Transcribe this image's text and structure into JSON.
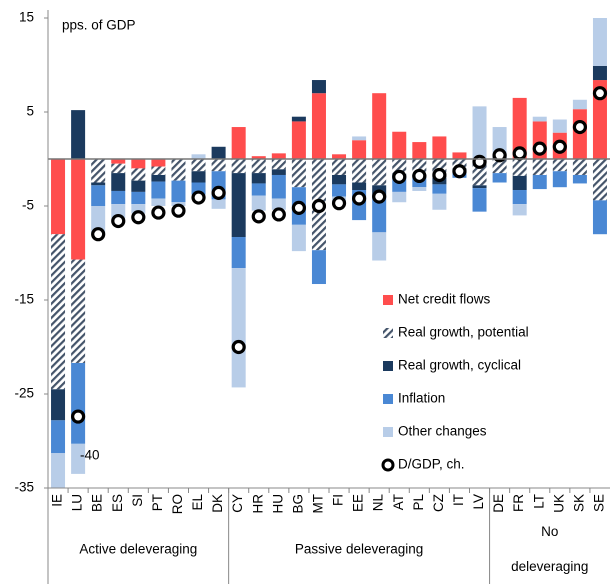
{
  "chart_data": {
    "type": "stacked-bar",
    "y_label": "pps. of GDP",
    "categories": [
      "IE",
      "LU",
      "BE",
      "ES",
      "SI",
      "PT",
      "RO",
      "EL",
      "DK",
      "CY",
      "HR",
      "HU",
      "BG",
      "MT",
      "FI",
      "EE",
      "NL",
      "AT",
      "PL",
      "CZ",
      "IT",
      "LV",
      "DE",
      "FR",
      "LT",
      "UK",
      "SK",
      "SE"
    ],
    "groups": [
      {
        "label": [
          "Active deleveraging"
        ],
        "size": 9
      },
      {
        "label": [
          "Passive deleveraging"
        ],
        "size": 13
      },
      {
        "label": [
          "No",
          "deleveraging"
        ],
        "size": 6
      }
    ],
    "series": [
      {
        "name": "Net credit flows",
        "color": "#ff4d4d",
        "values": [
          -8,
          -10.7,
          0,
          -0.5,
          -1,
          -0.8,
          0,
          0,
          0,
          3.4,
          0.3,
          0.6,
          4,
          7,
          0.5,
          2,
          7,
          2.9,
          1.8,
          2.4,
          0.7,
          0,
          0,
          6.5,
          4,
          2.8,
          5.3,
          8.4
        ]
      },
      {
        "name": "Real growth, potential",
        "color": "#44546a",
        "pattern": "hatch",
        "values": [
          -16.5,
          -11,
          -2.5,
          -1,
          -1.3,
          -0.9,
          -2.3,
          -1.3,
          -1.3,
          -1.5,
          -1.5,
          -1.1,
          -3,
          -9.7,
          -1.7,
          -2.5,
          -2.8,
          -1.6,
          -2,
          -2,
          -1,
          -2.8,
          -1.5,
          -1.8,
          -1.7,
          -1.3,
          -1.7,
          -4.4
        ]
      },
      {
        "name": "Real growth, cyclical",
        "color": "#1b3a5e",
        "values": [
          -3.3,
          5.2,
          -0.3,
          -1.9,
          -1.2,
          -0.7,
          0,
          -1.2,
          1.3,
          -6.8,
          -1.1,
          -0.6,
          0.5,
          1.4,
          -1,
          -0.8,
          -1.2,
          -0.4,
          0,
          -0.7,
          -0.5,
          -0.3,
          0.4,
          -1.5,
          0,
          0,
          0,
          1.5
        ]
      },
      {
        "name": "Inflation",
        "color": "#4a88d4",
        "values": [
          -3.5,
          -8.6,
          -2.2,
          -1.4,
          -1.3,
          -1.8,
          -2.3,
          -1.3,
          -3,
          -3.3,
          -1.3,
          -2.5,
          -4,
          -3.6,
          -1.3,
          -3.2,
          -3.8,
          -1.5,
          -1,
          -1,
          -0.5,
          -2.5,
          -1,
          -1.5,
          -1.5,
          -1.7,
          -0.9,
          -3.6
        ]
      },
      {
        "name": "Other changes",
        "color": "#b8cde8",
        "values": [
          -8.7,
          -3.2,
          -3,
          -1.5,
          -1,
          -0.8,
          -0.4,
          0.5,
          -1,
          -12.7,
          -1.6,
          -1.2,
          -2.8,
          0,
          -0.7,
          0.4,
          -3,
          -1.1,
          -0.4,
          -1.7,
          0,
          5.6,
          3,
          -1.2,
          0.5,
          1.4,
          1,
          5.1
        ]
      }
    ],
    "marker_series": {
      "name": "D/GDP, ch.",
      "values": [
        -40,
        -27.4,
        -8,
        -6.6,
        -6.2,
        -5.7,
        -5.5,
        -4.1,
        -3.6,
        -20,
        -6.1,
        -5.9,
        -5.2,
        -5,
        -4.7,
        -4.2,
        -4,
        -1.9,
        -1.8,
        -1.7,
        -1.3,
        -0.3,
        0.4,
        0.6,
        1.1,
        1.3,
        3.4,
        7
      ]
    },
    "annotations": [
      {
        "text": "-40",
        "value": -40
      }
    ],
    "ylim": [
      -35,
      15
    ],
    "yticks": [
      15,
      5,
      -5,
      -15,
      -25,
      -35
    ],
    "grid": false,
    "legend": "lower right"
  }
}
